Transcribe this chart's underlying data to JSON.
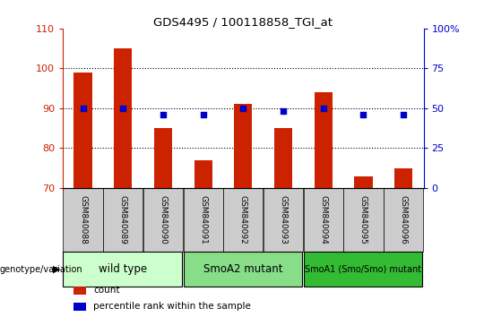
{
  "title": "GDS4495 / 100118858_TGI_at",
  "samples": [
    "GSM840088",
    "GSM840089",
    "GSM840090",
    "GSM840091",
    "GSM840092",
    "GSM840093",
    "GSM840094",
    "GSM840095",
    "GSM840096"
  ],
  "counts": [
    99,
    105,
    85,
    77,
    91,
    85,
    94,
    73,
    75
  ],
  "percentile_ranks": [
    50,
    50,
    46,
    46,
    50,
    48,
    50,
    46,
    46
  ],
  "ylim_left": [
    70,
    110
  ],
  "yticks_left": [
    70,
    80,
    90,
    100,
    110
  ],
  "ylim_right": [
    0,
    100
  ],
  "yticks_right": [
    0,
    25,
    50,
    75,
    100
  ],
  "yticklabels_right": [
    "0",
    "25",
    "50",
    "75",
    "100%"
  ],
  "bar_color": "#cc2200",
  "dot_color": "#0000cc",
  "grid_color": "#000000",
  "bg_color": "#ffffff",
  "groups": [
    {
      "label": "wild type",
      "start": 0,
      "end": 3,
      "color": "#ccffcc"
    },
    {
      "label": "SmoA2 mutant",
      "start": 3,
      "end": 6,
      "color": "#88dd88"
    },
    {
      "label": "SmoA1 (Smo/Smo) mutant",
      "start": 6,
      "end": 9,
      "color": "#33bb33"
    }
  ],
  "genotype_label": "genotype/variation",
  "legend_items": [
    {
      "label": "count",
      "color": "#cc2200"
    },
    {
      "label": "percentile rank within the sample",
      "color": "#0000cc"
    }
  ],
  "left_axis_color": "#cc2200",
  "right_axis_color": "#0000cc",
  "tick_label_bg": "#cccccc"
}
